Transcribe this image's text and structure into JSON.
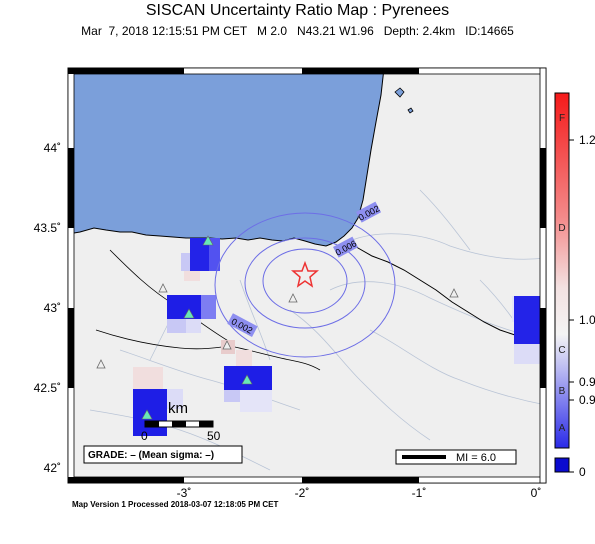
{
  "header": {
    "title": "SISCAN Uncertainty Ratio Map : Pyrenees",
    "subtitle": "Mar  7, 2018 12:15:51 PM CET   M 2.0   N43.21 W1.96   Depth: 2.4km   ID:14665"
  },
  "map": {
    "lat_ticks": [
      "44˚",
      "43.5˚",
      "43˚",
      "42.5˚",
      "42˚"
    ],
    "lon_ticks": [
      "-3˚",
      "-2˚",
      "-1˚",
      "0˚"
    ],
    "contour_labels": [
      "0.002",
      "0.006",
      "0.002"
    ],
    "scale_bar": {
      "unit": "km",
      "start": "0",
      "end": "50"
    },
    "grade_box": "GRADE: – (Mean sigma: –)",
    "mi_legend": "MI = 6.0",
    "epicenter_icon": "star-icon",
    "station_icon": "triangle-icon"
  },
  "colorbar": {
    "grades": [
      "F",
      "D",
      "C",
      "B",
      "A"
    ],
    "values": [
      "1.2",
      "1.0",
      "0.9",
      "0.9",
      "0"
    ]
  },
  "footer": {
    "text": "Map Version 1 Processed 2018-03-07 12:18:05 PM CET"
  }
}
